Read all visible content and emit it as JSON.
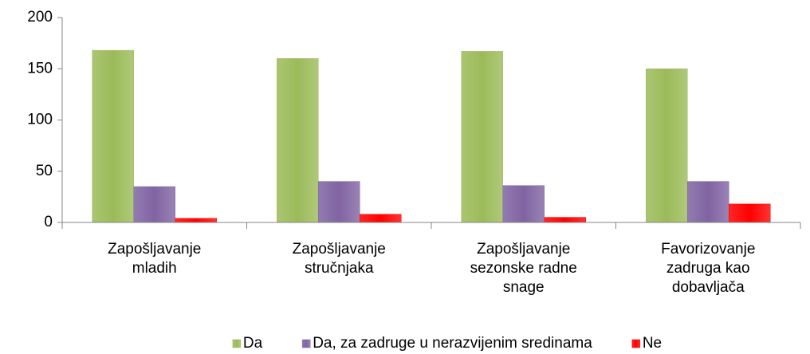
{
  "chart_data": {
    "type": "bar",
    "categories": [
      "Zapošljavanje mladih",
      "Zapošljavanje stručnjaka",
      "Zapošljavanje sezonske radne snage",
      "Favorizovanje zadruga kao dobavljača"
    ],
    "series": [
      {
        "name": "Da",
        "color": "#9bbb59",
        "values": [
          168,
          160,
          167,
          150
        ]
      },
      {
        "name": "Da, za zadruge u nerazvijenim sredinama",
        "color": "#8064a2",
        "values": [
          35,
          40,
          36,
          40
        ]
      },
      {
        "name": "Ne",
        "color": "#ff0000",
        "values": [
          4,
          8,
          5,
          18
        ]
      }
    ],
    "ylim": [
      0,
      200
    ],
    "yticks": [
      0,
      50,
      100,
      150,
      200
    ],
    "grid": false,
    "legend": "bottom"
  }
}
